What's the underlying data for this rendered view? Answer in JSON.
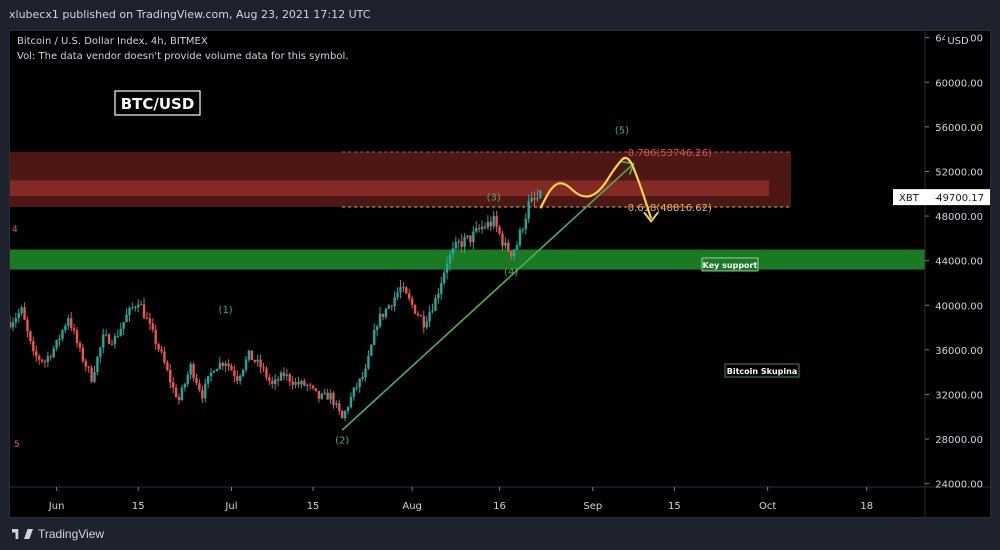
{
  "header": {
    "published": "xlubecx1 published on TradingView.com, Aug 23, 2021 17:12 UTC"
  },
  "legend": {
    "symbol": "Bitcoin / U.S. Dollar Index, 4h, BITMEX",
    "vol": "Vol: The data vendor doesn't provide volume data for this symbol."
  },
  "annotations": {
    "pair_box": "BTC/USD",
    "fib_786": "0.786(53746.26)",
    "fib_618": "0.618(48816.62)",
    "key_support": "Key support",
    "bitcoin_skupina": "Bitcoin Skupina",
    "wave_1": "(1)",
    "wave_2": "(2)",
    "wave_3": "(3)",
    "wave_4": "(4)",
    "wave_5": "(5)",
    "left_4": "4",
    "left_5": "5"
  },
  "price_axis": {
    "currency": "USD",
    "current_symbol": "XBT",
    "current_price": "49700.17"
  },
  "footer": {
    "brand": "TradingView"
  },
  "colors": {
    "background": "#000000",
    "up": "#26a69a",
    "down": "#ef5350",
    "wave_label": "#4caf50",
    "trendline": "#4caf50",
    "projection": "#f5d547",
    "fib_786": "#e0524f",
    "fib_618": "#f0b35a",
    "resistance_zone": "#8b2a25",
    "support_zone": "#1f8f2a"
  },
  "chart_data": {
    "type": "candlestick",
    "symbol": "BTC/USD",
    "timeframe": "4h",
    "y_axis": {
      "ticks": [
        24000,
        28000,
        32000,
        36000,
        40000,
        44000,
        48000,
        52000,
        56000,
        60000,
        64000
      ],
      "tick_labels": [
        "24000.00",
        "28000.00",
        "32000.00",
        "36000.00",
        "40000.00",
        "44000.00",
        "48000.00",
        "52000.00",
        "56000.00",
        "60000.00",
        "64000.00"
      ],
      "range": [
        23700,
        64600
      ]
    },
    "x_axis": {
      "range": [
        "2021-05-24",
        "2021-10-28"
      ],
      "ticks": [
        {
          "date": "2021-06-01",
          "label": "Jun"
        },
        {
          "date": "2021-06-15",
          "label": "15"
        },
        {
          "date": "2021-07-01",
          "label": "Jul"
        },
        {
          "date": "2021-07-15",
          "label": "15"
        },
        {
          "date": "2021-08-01",
          "label": "Aug"
        },
        {
          "date": "2021-08-16",
          "label": "16"
        },
        {
          "date": "2021-09-01",
          "label": "Sep"
        },
        {
          "date": "2021-09-15",
          "label": "15"
        },
        {
          "date": "2021-10-01",
          "label": "Oct"
        },
        {
          "date": "2021-10-18",
          "label": "18"
        }
      ]
    },
    "price_path": [
      [
        "2021-05-24",
        38500
      ],
      [
        "2021-05-26",
        39500
      ],
      [
        "2021-05-28",
        35500
      ],
      [
        "2021-05-30",
        35000
      ],
      [
        "2021-06-01",
        36500
      ],
      [
        "2021-06-03",
        39000
      ],
      [
        "2021-06-05",
        35800
      ],
      [
        "2021-06-07",
        33500
      ],
      [
        "2021-06-09",
        37000
      ],
      [
        "2021-06-11",
        37000
      ],
      [
        "2021-06-13",
        39000
      ],
      [
        "2021-06-15",
        40500
      ],
      [
        "2021-06-17",
        38000
      ],
      [
        "2021-06-19",
        35500
      ],
      [
        "2021-06-21",
        32500
      ],
      [
        "2021-06-22",
        31500
      ],
      [
        "2021-06-24",
        34500
      ],
      [
        "2021-06-26",
        32000
      ],
      [
        "2021-06-28",
        34500
      ],
      [
        "2021-06-30",
        35000
      ],
      [
        "2021-07-02",
        33500
      ],
      [
        "2021-07-04",
        35500
      ],
      [
        "2021-07-06",
        34500
      ],
      [
        "2021-07-08",
        32800
      ],
      [
        "2021-07-10",
        33800
      ],
      [
        "2021-07-12",
        33000
      ],
      [
        "2021-07-14",
        32800
      ],
      [
        "2021-07-16",
        31700
      ],
      [
        "2021-07-18",
        31900
      ],
      [
        "2021-07-20",
        29800
      ],
      [
        "2021-07-22",
        32300
      ],
      [
        "2021-07-24",
        34000
      ],
      [
        "2021-07-26",
        38500
      ],
      [
        "2021-07-28",
        40000
      ],
      [
        "2021-07-30",
        41500
      ],
      [
        "2021-08-01",
        40000
      ],
      [
        "2021-08-03",
        38500
      ],
      [
        "2021-08-05",
        40500
      ],
      [
        "2021-08-07",
        44000
      ],
      [
        "2021-08-09",
        45500
      ],
      [
        "2021-08-11",
        46000
      ],
      [
        "2021-08-13",
        47000
      ],
      [
        "2021-08-15",
        47500
      ],
      [
        "2021-08-17",
        45200
      ],
      [
        "2021-08-18",
        44800
      ],
      [
        "2021-08-19",
        45500
      ],
      [
        "2021-08-21",
        49000
      ],
      [
        "2021-08-23",
        49700
      ]
    ],
    "zones": [
      {
        "name": "resistance",
        "from": 48816.62,
        "to": 53746.26
      },
      {
        "name": "key_support",
        "from": 43200,
        "to": 45000
      }
    ],
    "fib_levels": [
      {
        "ratio": 0.786,
        "value": 53746.26
      },
      {
        "ratio": 0.618,
        "value": 48816.62
      }
    ],
    "trendline": [
      [
        "2021-07-20",
        28800
      ],
      [
        "2021-09-08",
        52700
      ]
    ],
    "projection_path": [
      [
        "2021-08-23",
        48700
      ],
      [
        "2021-08-25",
        50700
      ],
      [
        "2021-08-27",
        51100
      ],
      [
        "2021-08-30",
        49600
      ],
      [
        "2021-09-02",
        50000
      ],
      [
        "2021-09-05",
        52500
      ],
      [
        "2021-09-07",
        53600
      ],
      [
        "2021-09-09",
        51000
      ],
      [
        "2021-09-11",
        47800
      ]
    ],
    "wave_labels": [
      {
        "label": "(1)",
        "date": "2021-06-30",
        "value": 39300
      },
      {
        "label": "(2)",
        "date": "2021-07-20",
        "value": 27600
      },
      {
        "label": "(3)",
        "date": "2021-08-15",
        "value": 49400
      },
      {
        "label": "(4)",
        "date": "2021-08-18",
        "value": 42700
      },
      {
        "label": "(5)",
        "date": "2021-09-06",
        "value": 55400
      }
    ],
    "current_price": 49700.17
  }
}
